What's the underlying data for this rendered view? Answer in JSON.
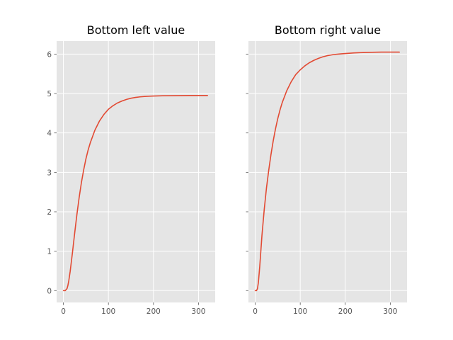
{
  "chart_data": [
    {
      "type": "line",
      "title": "Bottom left value",
      "xlabel": "",
      "ylabel": "",
      "xlim": [
        -15,
        337
      ],
      "ylim": [
        -0.3,
        6.33
      ],
      "xticks": [
        0,
        100,
        200,
        300
      ],
      "yticks": [
        0,
        1,
        2,
        3,
        4,
        5,
        6
      ],
      "ytick_labels_visible": true,
      "grid": true,
      "series": [
        {
          "color": "#e24a33",
          "x": [
            0,
            4,
            8,
            10,
            12,
            15,
            20,
            25,
            30,
            35,
            40,
            45,
            50,
            55,
            60,
            70,
            80,
            90,
            100,
            110,
            120,
            130,
            140,
            150,
            160,
            170,
            180,
            190,
            200,
            220,
            240,
            260,
            280,
            300,
            320
          ],
          "y": [
            0.0,
            0.0,
            0.05,
            0.13,
            0.25,
            0.48,
            0.95,
            1.45,
            1.93,
            2.36,
            2.74,
            3.06,
            3.34,
            3.57,
            3.76,
            4.07,
            4.3,
            4.47,
            4.6,
            4.69,
            4.76,
            4.81,
            4.85,
            4.88,
            4.9,
            4.915,
            4.925,
            4.932,
            4.937,
            4.943,
            4.946,
            4.948,
            4.949,
            4.95,
            4.95
          ]
        }
      ]
    },
    {
      "type": "line",
      "title": "Bottom right value",
      "xlabel": "",
      "ylabel": "",
      "xlim": [
        -15,
        337
      ],
      "ylim": [
        -0.3,
        6.33
      ],
      "xticks": [
        0,
        100,
        200,
        300
      ],
      "yticks": [
        0,
        1,
        2,
        3,
        4,
        5,
        6
      ],
      "ytick_labels_visible": false,
      "grid": true,
      "series": [
        {
          "color": "#e24a33",
          "x": [
            0,
            3,
            5,
            7,
            10,
            15,
            20,
            25,
            30,
            35,
            40,
            45,
            50,
            55,
            60,
            70,
            80,
            90,
            100,
            110,
            120,
            130,
            140,
            150,
            160,
            170,
            180,
            190,
            200,
            220,
            240,
            260,
            280,
            300,
            320
          ],
          "y": [
            0.0,
            0.0,
            0.05,
            0.2,
            0.6,
            1.4,
            2.05,
            2.6,
            3.05,
            3.45,
            3.8,
            4.1,
            4.36,
            4.58,
            4.77,
            5.07,
            5.3,
            5.48,
            5.6,
            5.7,
            5.78,
            5.84,
            5.89,
            5.93,
            5.96,
            5.98,
            5.995,
            6.005,
            6.015,
            6.03,
            6.04,
            6.045,
            6.05,
            6.05,
            6.05
          ]
        }
      ]
    }
  ]
}
